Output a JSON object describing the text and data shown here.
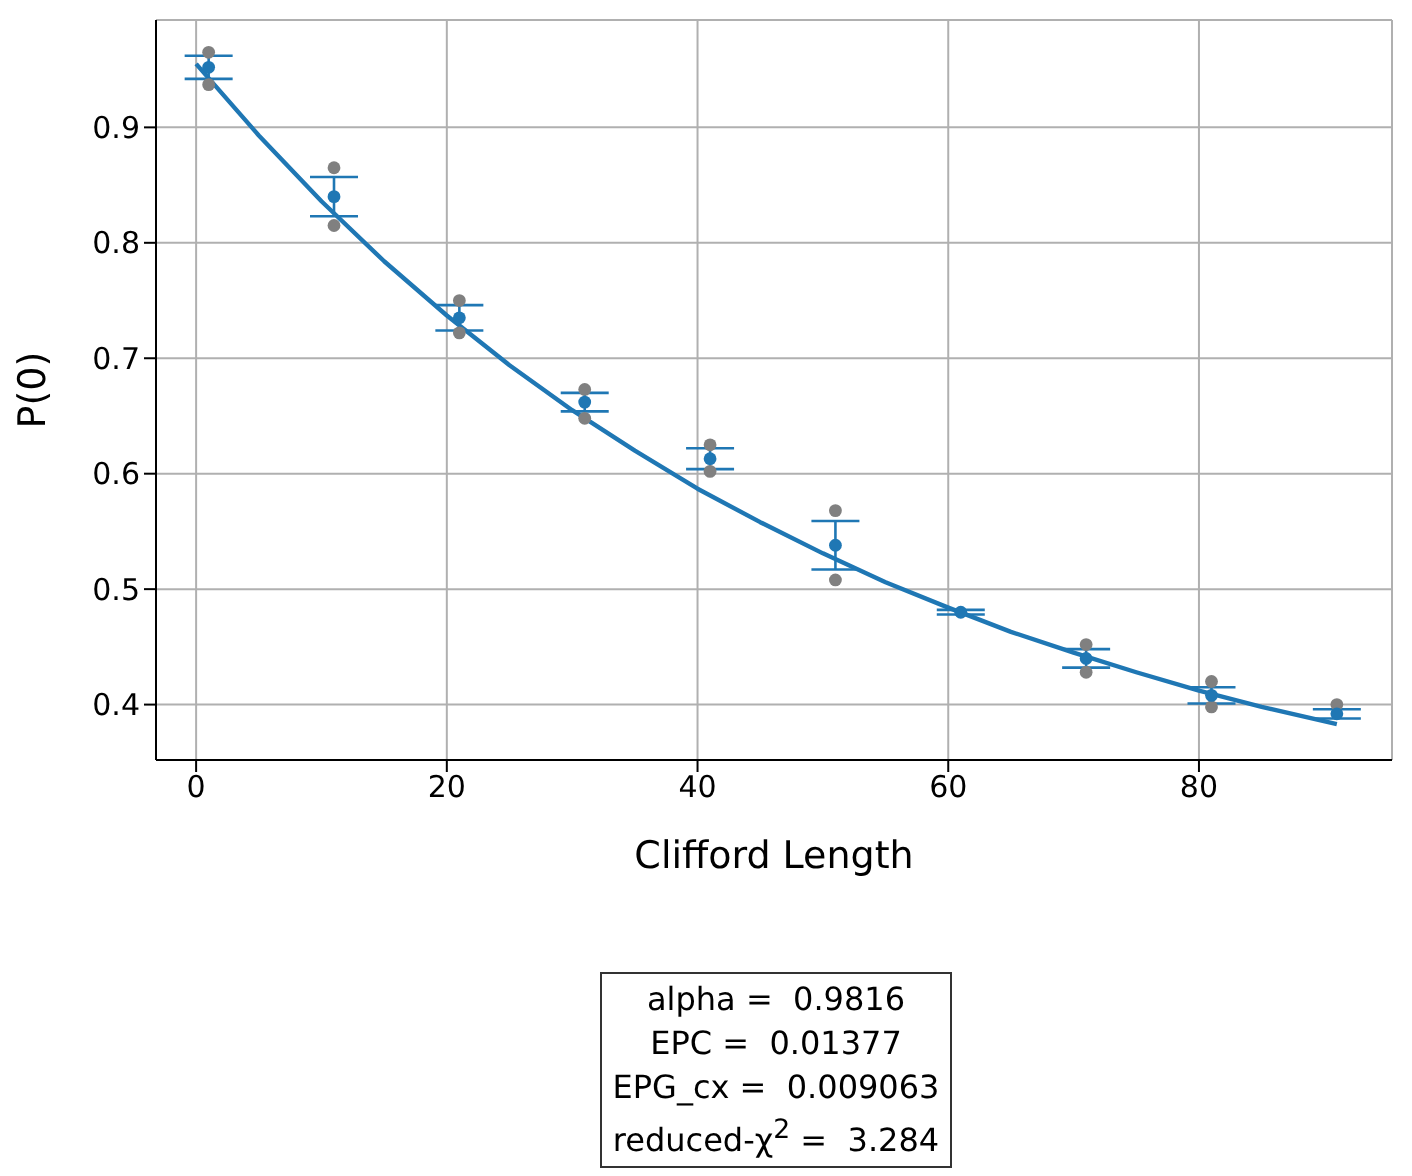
{
  "chart_data": {
    "type": "scatter",
    "xlabel": "Clifford Length",
    "ylabel": "P(0)",
    "xlim": [
      -3.2,
      95.4
    ],
    "ylim": [
      0.352,
      0.993
    ],
    "xticks": [
      0,
      20,
      40,
      60,
      80
    ],
    "yticks": [
      0.4,
      0.5,
      0.6,
      0.7,
      0.8,
      0.9
    ],
    "grid": true,
    "series": [
      {
        "type": "line",
        "color": "#1f77b4",
        "marker": "none",
        "x": [
          0,
          5,
          10,
          15,
          20,
          25,
          30,
          35,
          40,
          45,
          50,
          55,
          60,
          65,
          70,
          75,
          80,
          85,
          91
        ],
        "values": [
          0.955,
          0.893,
          0.836,
          0.784,
          0.737,
          0.694,
          0.655,
          0.62,
          0.587,
          0.558,
          0.531,
          0.506,
          0.484,
          0.463,
          0.445,
          0.428,
          0.412,
          0.398,
          0.383
        ]
      },
      {
        "color": "#808080",
        "marker": "circle",
        "x": [
          1,
          1,
          11,
          11,
          21,
          21,
          31,
          31,
          41,
          41,
          51,
          51,
          71,
          71,
          81,
          81,
          91
        ],
        "values": [
          0.965,
          0.937,
          0.865,
          0.815,
          0.75,
          0.722,
          0.673,
          0.648,
          0.625,
          0.602,
          0.568,
          0.508,
          0.452,
          0.428,
          0.42,
          0.398,
          0.4
        ]
      },
      {
        "color": "#1f77b4",
        "marker": "circle",
        "x": [
          1,
          11,
          21,
          31,
          41,
          51,
          61,
          71,
          81,
          91
        ],
        "values": [
          0.952,
          0.84,
          0.735,
          0.662,
          0.613,
          0.538,
          0.48,
          0.44,
          0.408,
          0.392
        ],
        "errors": [
          0.01,
          0.017,
          0.011,
          0.008,
          0.009,
          0.021,
          0.002,
          0.008,
          0.007,
          0.004
        ]
      }
    ],
    "annotations": [
      "alpha =  0.9816",
      "EPC =  0.01377",
      "EPG_cx =  0.009063",
      "reduced-χ$^{2}$ =  3.284"
    ]
  }
}
